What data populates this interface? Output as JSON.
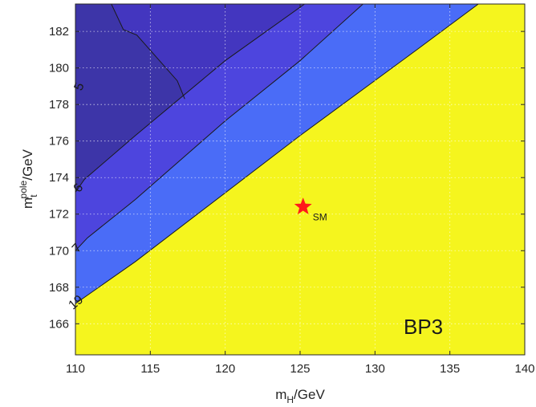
{
  "chart_data": {
    "type": "contour",
    "xlabel": {
      "main": "m",
      "sub": "H",
      "unit": "/GeV"
    },
    "ylabel": {
      "main": "m",
      "sub": "t",
      "sup": "pole",
      "unit": "/GeV"
    },
    "xlim": [
      110,
      140
    ],
    "ylim": [
      164.3,
      183.5
    ],
    "xticks": [
      110,
      115,
      120,
      125,
      130,
      135,
      140
    ],
    "yticks": [
      166,
      168,
      170,
      172,
      174,
      176,
      178,
      180,
      182
    ],
    "grid": true,
    "annotation": "BP3",
    "colors": {
      "region_lt5": "#3d35a8",
      "region_5_6": "#4336bf",
      "region_6_7": "#4d45de",
      "region_7_19": "#4a6cf7",
      "region_stable": "#f5f51e",
      "contour_line": "#1a1a1a",
      "grid": "#ffffff",
      "marker": "#ff1a1a"
    },
    "contours": [
      {
        "label": "5",
        "points": [
          [
            112.4,
            183.5
          ],
          [
            113.2,
            182.1
          ],
          [
            114.1,
            181.8
          ],
          [
            116.8,
            179.3
          ],
          [
            117.3,
            178.3
          ]
        ],
        "label_pos": [
          110.5,
          178.9
        ],
        "label_angle": -68
      },
      {
        "label": "6",
        "points": [
          [
            110.0,
            173.2
          ],
          [
            110.6,
            173.9
          ],
          [
            114.0,
            176.3
          ],
          [
            120.0,
            180.4
          ],
          [
            125.3,
            183.5
          ]
        ],
        "label_pos": [
          110.4,
          173.3
        ],
        "label_angle": -52
      },
      {
        "label": "7",
        "points": [
          [
            110.0,
            170.0
          ],
          [
            110.8,
            170.7
          ],
          [
            114.0,
            172.8
          ],
          [
            120.0,
            177.1
          ],
          [
            125.0,
            180.4
          ],
          [
            129.2,
            183.5
          ]
        ],
        "label_pos": [
          110.3,
          170.0
        ],
        "label_angle": -48
      },
      {
        "label": "19",
        "points": [
          [
            110.0,
            167.1
          ],
          [
            114.0,
            169.4
          ],
          [
            125.0,
            176.3
          ],
          [
            132.8,
            181.0
          ],
          [
            136.9,
            183.5
          ]
        ],
        "label_pos": [
          110.2,
          167.0
        ],
        "label_angle": -40
      }
    ],
    "regions": [
      {
        "name": "region_lt5",
        "polygon": [
          [
            110.0,
            183.5
          ],
          [
            112.4,
            183.5
          ],
          [
            113.2,
            182.1
          ],
          [
            114.1,
            181.8
          ],
          [
            116.8,
            179.3
          ],
          [
            117.3,
            178.3
          ],
          [
            110.0,
            173.2
          ]
        ]
      },
      {
        "name": "region_5_6",
        "polygon": [
          [
            110.0,
            173.2
          ],
          [
            117.3,
            178.3
          ],
          [
            116.8,
            179.3
          ],
          [
            114.1,
            181.8
          ],
          [
            113.2,
            182.1
          ],
          [
            112.4,
            183.5
          ],
          [
            125.3,
            183.5
          ],
          [
            120.0,
            180.4
          ],
          [
            114.0,
            176.3
          ],
          [
            110.6,
            173.9
          ]
        ]
      },
      {
        "name": "region_6_7",
        "polygon": [
          [
            110.0,
            170.0
          ],
          [
            110.0,
            173.2
          ],
          [
            110.6,
            173.9
          ],
          [
            114.0,
            176.3
          ],
          [
            120.0,
            180.4
          ],
          [
            125.3,
            183.5
          ],
          [
            129.2,
            183.5
          ],
          [
            125.0,
            180.4
          ],
          [
            120.0,
            177.1
          ],
          [
            114.0,
            172.8
          ],
          [
            110.8,
            170.7
          ]
        ]
      },
      {
        "name": "region_7_19",
        "polygon": [
          [
            110.0,
            167.1
          ],
          [
            110.0,
            170.0
          ],
          [
            110.8,
            170.7
          ],
          [
            114.0,
            172.8
          ],
          [
            120.0,
            177.1
          ],
          [
            125.0,
            180.4
          ],
          [
            129.2,
            183.5
          ],
          [
            136.9,
            183.5
          ],
          [
            132.8,
            181.0
          ],
          [
            125.0,
            176.3
          ],
          [
            114.0,
            169.4
          ]
        ]
      }
    ],
    "marker": {
      "label": "SM",
      "x": 125.2,
      "y": 172.4,
      "shape": "star"
    }
  }
}
